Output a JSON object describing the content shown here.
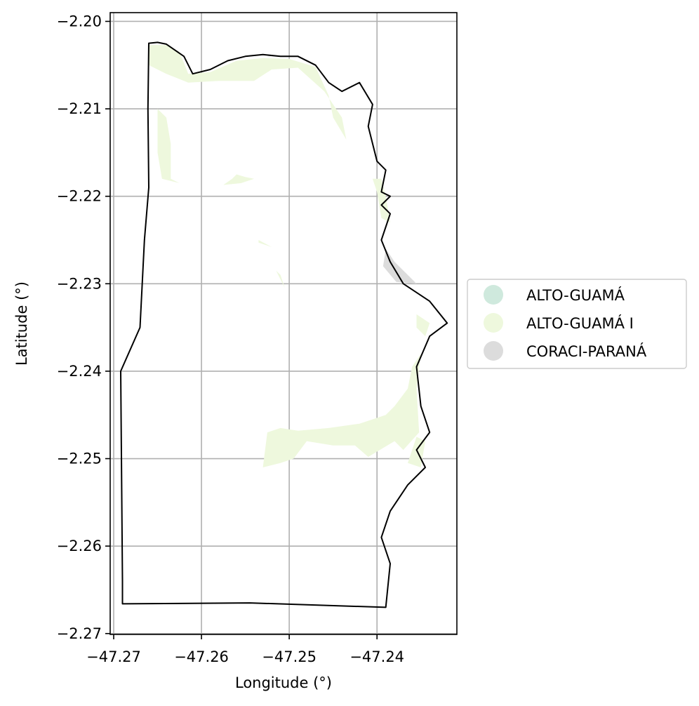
{
  "chart_data": {
    "type": "map",
    "xlabel": "Longitude (°)",
    "ylabel": "Latitude (°)",
    "xlim": [
      -47.2704,
      -47.2309
    ],
    "ylim": [
      -2.2701,
      -2.199
    ],
    "grid": true,
    "x_ticks": [
      -47.27,
      -47.26,
      -47.25,
      -47.24
    ],
    "x_tick_labels": [
      "−47.27",
      "−47.26",
      "−47.25",
      "−47.24"
    ],
    "y_ticks": [
      -2.2,
      -2.21,
      -2.22,
      -2.23,
      -2.24,
      -2.25,
      -2.26,
      -2.27
    ],
    "y_tick_labels": [
      "−2.20",
      "−2.21",
      "−2.22",
      "−2.23",
      "−2.24",
      "−2.25",
      "−2.26",
      "−2.27"
    ],
    "legend_position": "right",
    "legend": [
      {
        "label": "ALTO-GUAMÁ",
        "color": "#cfe9dd"
      },
      {
        "label": "ALTO-GUAMÁ I",
        "color": "#eef8dd"
      },
      {
        "label": "CORACI-PARANÁ",
        "color": "#dcdcdc"
      }
    ],
    "boundary": {
      "stroke": "#000000",
      "coords": [
        [
          -47.266,
          -2.2025
        ],
        [
          -47.265,
          -2.2024
        ],
        [
          -47.264,
          -2.2026
        ],
        [
          -47.263,
          -2.2033
        ],
        [
          -47.262,
          -2.204
        ],
        [
          -47.261,
          -2.206
        ],
        [
          -47.259,
          -2.2055
        ],
        [
          -47.257,
          -2.2045
        ],
        [
          -47.255,
          -2.204
        ],
        [
          -47.253,
          -2.2038
        ],
        [
          -47.251,
          -2.204
        ],
        [
          -47.249,
          -2.204
        ],
        [
          -47.247,
          -2.205
        ],
        [
          -47.2455,
          -2.207
        ],
        [
          -47.244,
          -2.208
        ],
        [
          -47.242,
          -2.207
        ],
        [
          -47.2405,
          -2.2095
        ],
        [
          -47.241,
          -2.212
        ],
        [
          -47.24,
          -2.216
        ],
        [
          -47.239,
          -2.217
        ],
        [
          -47.2395,
          -2.2195
        ],
        [
          -47.2385,
          -2.22
        ],
        [
          -47.2395,
          -2.221
        ],
        [
          -47.2385,
          -2.222
        ],
        [
          -47.2395,
          -2.225
        ],
        [
          -47.2385,
          -2.2275
        ],
        [
          -47.237,
          -2.23
        ],
        [
          -47.234,
          -2.232
        ],
        [
          -47.232,
          -2.2345
        ],
        [
          -47.234,
          -2.236
        ],
        [
          -47.2355,
          -2.2395
        ],
        [
          -47.235,
          -2.244
        ],
        [
          -47.234,
          -2.247
        ],
        [
          -47.2355,
          -2.249
        ],
        [
          -47.2345,
          -2.251
        ],
        [
          -47.2365,
          -2.253
        ],
        [
          -47.2385,
          -2.256
        ],
        [
          -47.2395,
          -2.259
        ],
        [
          -47.2385,
          -2.262
        ],
        [
          -47.239,
          -2.267
        ],
        [
          -47.2545,
          -2.2665
        ],
        [
          -47.269,
          -2.2666
        ],
        [
          -47.269,
          -2.264
        ],
        [
          -47.2692,
          -2.24
        ],
        [
          -47.267,
          -2.235
        ],
        [
          -47.2665,
          -2.225
        ],
        [
          -47.266,
          -2.219
        ],
        [
          -47.2661,
          -2.21
        ],
        [
          -47.266,
          -2.2025
        ]
      ]
    },
    "regions": [
      {
        "series": "ALTO-GUAMÁ I",
        "coords": [
          [
            -47.266,
            -2.2027
          ],
          [
            -47.264,
            -2.2027
          ],
          [
            -47.2625,
            -2.2035
          ],
          [
            -47.2615,
            -2.206
          ],
          [
            -47.259,
            -2.2058
          ],
          [
            -47.256,
            -2.2045
          ],
          [
            -47.253,
            -2.2042
          ],
          [
            -47.25,
            -2.2043
          ],
          [
            -47.247,
            -2.2052
          ],
          [
            -47.2455,
            -2.2085
          ],
          [
            -47.245,
            -2.211
          ],
          [
            -47.2435,
            -2.2135
          ],
          [
            -47.244,
            -2.211
          ],
          [
            -47.246,
            -2.208
          ],
          [
            -47.249,
            -2.2053
          ],
          [
            -47.252,
            -2.2055
          ],
          [
            -47.254,
            -2.2068
          ],
          [
            -47.258,
            -2.2068
          ],
          [
            -47.2615,
            -2.207
          ],
          [
            -47.264,
            -2.206
          ],
          [
            -47.266,
            -2.205
          ]
        ]
      },
      {
        "series": "ALTO-GUAMÁ I",
        "coords": [
          [
            -47.265,
            -2.21
          ],
          [
            -47.264,
            -2.211
          ],
          [
            -47.2635,
            -2.214
          ],
          [
            -47.2635,
            -2.218
          ],
          [
            -47.2625,
            -2.2185
          ],
          [
            -47.2645,
            -2.218
          ],
          [
            -47.265,
            -2.215
          ]
        ]
      },
      {
        "series": "ALTO-GUAMÁ I",
        "coords": [
          [
            -47.256,
            -2.2175
          ],
          [
            -47.255,
            -2.2178
          ],
          [
            -47.254,
            -2.218
          ],
          [
            -47.2555,
            -2.2185
          ],
          [
            -47.2575,
            -2.2187
          ],
          [
            -47.2565,
            -2.218
          ]
        ]
      },
      {
        "series": "ALTO-GUAMÁ I",
        "coords": [
          [
            -47.2405,
            -2.218
          ],
          [
            -47.24,
            -2.2195
          ],
          [
            -47.2395,
            -2.2225
          ],
          [
            -47.2385,
            -2.223
          ],
          [
            -47.239,
            -2.22
          ],
          [
            -47.2395,
            -2.218
          ]
        ]
      },
      {
        "series": "ALTO-GUAMÁ I",
        "coords": [
          [
            -47.2535,
            -2.225
          ],
          [
            -47.252,
            -2.2258
          ],
          [
            -47.2535,
            -2.2253
          ]
        ]
      },
      {
        "series": "ALTO-GUAMÁ I",
        "coords": [
          [
            -47.2515,
            -2.2285
          ],
          [
            -47.2505,
            -2.2305
          ],
          [
            -47.251,
            -2.229
          ]
        ]
      },
      {
        "series": "ALTO-GUAMÁ I",
        "coords": [
          [
            -47.2355,
            -2.2335
          ],
          [
            -47.234,
            -2.2345
          ],
          [
            -47.2345,
            -2.236
          ],
          [
            -47.2355,
            -2.235
          ]
        ]
      },
      {
        "series": "ALTO-GUAMÁ I",
        "coords": [
          [
            -47.2455,
            -2.2465
          ],
          [
            -47.242,
            -2.246
          ],
          [
            -47.239,
            -2.245
          ],
          [
            -47.238,
            -2.244
          ],
          [
            -47.2365,
            -2.242
          ],
          [
            -47.236,
            -2.2395
          ],
          [
            -47.235,
            -2.238
          ],
          [
            -47.2355,
            -2.242
          ],
          [
            -47.2352,
            -2.247
          ],
          [
            -47.237,
            -2.249
          ],
          [
            -47.238,
            -2.248
          ],
          [
            -47.241,
            -2.2498
          ],
          [
            -47.2425,
            -2.2485
          ],
          [
            -47.245,
            -2.2485
          ],
          [
            -47.248,
            -2.248
          ],
          [
            -47.2495,
            -2.25
          ],
          [
            -47.251,
            -2.2505
          ],
          [
            -47.253,
            -2.251
          ],
          [
            -47.2525,
            -2.247
          ],
          [
            -47.251,
            -2.2465
          ],
          [
            -47.249,
            -2.2468
          ]
        ]
      },
      {
        "series": "ALTO-GUAMÁ I",
        "coords": [
          [
            -47.2355,
            -2.2475
          ],
          [
            -47.2345,
            -2.248
          ],
          [
            -47.235,
            -2.251
          ],
          [
            -47.2365,
            -2.2505
          ]
        ]
      },
      {
        "series": "CORACI-PARANÁ",
        "coords": [
          [
            -47.239,
            -2.226
          ],
          [
            -47.238,
            -2.2275
          ],
          [
            -47.2365,
            -2.229
          ],
          [
            -47.2355,
            -2.23
          ],
          [
            -47.2378,
            -2.2298
          ],
          [
            -47.2393,
            -2.228
          ]
        ]
      }
    ]
  }
}
